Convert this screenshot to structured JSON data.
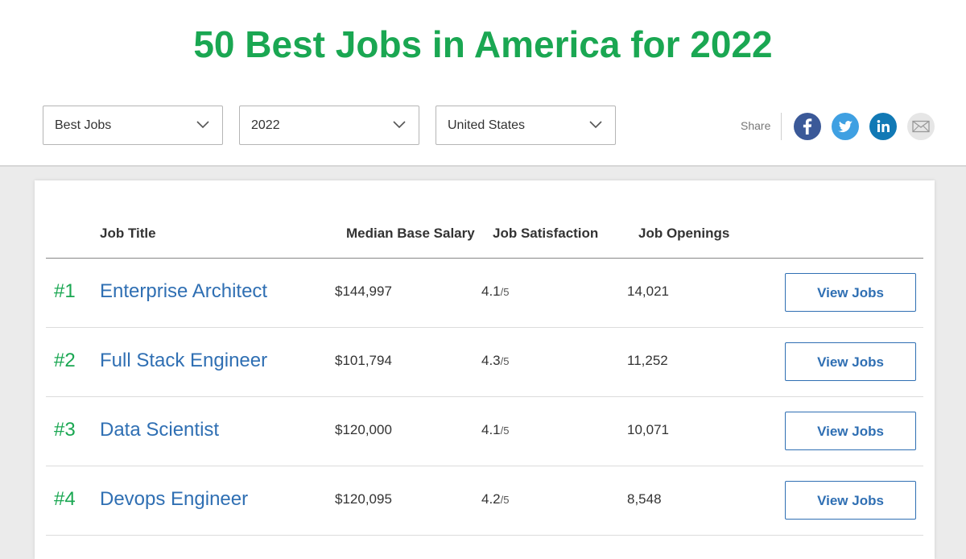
{
  "page": {
    "title": "50 Best Jobs in America for 2022"
  },
  "filters": [
    {
      "label": "Best Jobs"
    },
    {
      "label": "2022"
    },
    {
      "label": "United States"
    }
  ],
  "share": {
    "label": "Share",
    "icons": [
      "facebook-icon",
      "twitter-icon",
      "linkedin-icon",
      "email-icon"
    ]
  },
  "table": {
    "columns": {
      "job_title": "Job Title",
      "salary": "Median Base Salary",
      "satisfaction": "Job Satisfaction",
      "openings": "Job Openings"
    },
    "rows": [
      {
        "rank": "#1",
        "title": "Enterprise Architect",
        "salary": "$144,997",
        "satisfaction": "4.1",
        "satisfaction_out_of": "/5",
        "openings": "14,021",
        "button": "View Jobs"
      },
      {
        "rank": "#2",
        "title": "Full Stack Engineer",
        "salary": "$101,794",
        "satisfaction": "4.3",
        "satisfaction_out_of": "/5",
        "openings": "11,252",
        "button": "View Jobs"
      },
      {
        "rank": "#3",
        "title": "Data Scientist",
        "salary": "$120,000",
        "satisfaction": "4.1",
        "satisfaction_out_of": "/5",
        "openings": "10,071",
        "button": "View Jobs"
      },
      {
        "rank": "#4",
        "title": "Devops Engineer",
        "salary": "$120,095",
        "satisfaction": "4.2",
        "satisfaction_out_of": "/5",
        "openings": "8,548",
        "button": "View Jobs"
      }
    ]
  },
  "colors": {
    "brand_green": "#1aa752",
    "link_blue": "#2f6fb3",
    "facebook": "#3b5998",
    "twitter": "#3fa0e2",
    "linkedin": "#1179b5",
    "email_bg": "#e6e6e6"
  }
}
